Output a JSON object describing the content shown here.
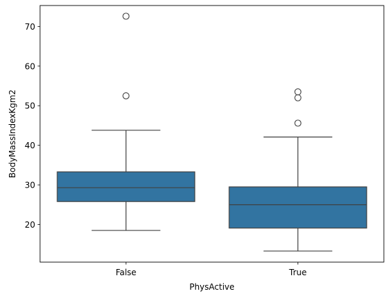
{
  "chart_data": {
    "type": "box",
    "xlabel": "PhysActive",
    "ylabel": "BodyMassIndexKgm2",
    "categories": [
      "False",
      "True"
    ],
    "ylim": [
      10.5,
      75.3
    ],
    "yticks": [
      20,
      30,
      40,
      50,
      60,
      70
    ],
    "grid": false,
    "color": "#3274a1",
    "edge_color": "#404040",
    "boxes": [
      {
        "category": "False",
        "whisker_low": 18.5,
        "q1": 25.8,
        "median": 29.3,
        "q3": 33.3,
        "whisker_high": 43.8,
        "outliers": [
          52.5,
          72.6
        ]
      },
      {
        "category": "True",
        "whisker_low": 13.3,
        "q1": 19.1,
        "median": 25.0,
        "q3": 29.5,
        "whisker_high": 42.1,
        "outliers": [
          45.6,
          52.0,
          53.5
        ]
      }
    ]
  }
}
